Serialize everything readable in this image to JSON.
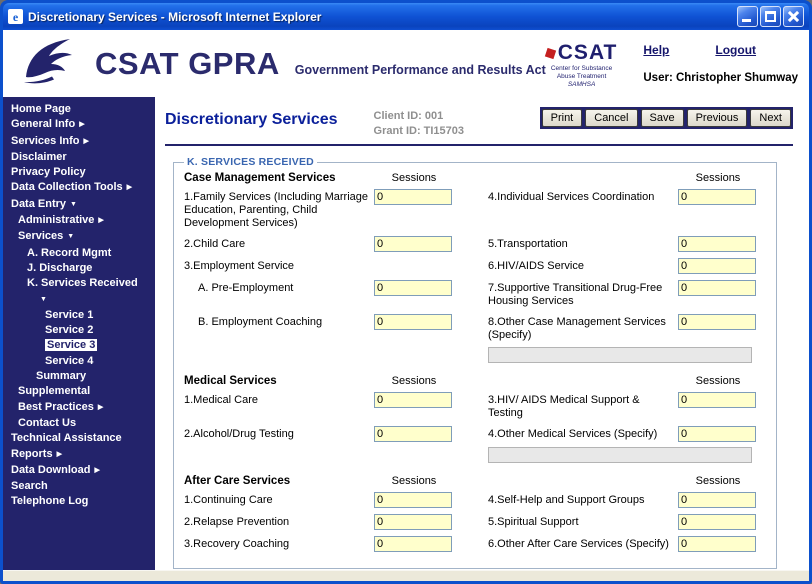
{
  "icons": {
    "chevron_right": "▶",
    "chevron_down": "▼",
    "ie_glyph": "e"
  },
  "window": {
    "title": "Discretionary Services - Microsoft Internet Explorer"
  },
  "header": {
    "brand": "CSAT GPRA",
    "tagline": "Government Performance and Results Act",
    "csat": {
      "title": "CSAT",
      "line1": "Center for Substance",
      "line2": "Abuse Treatment",
      "org": "SAMHSA"
    },
    "links": {
      "help": "Help",
      "logout": "Logout"
    },
    "user": "User: Christopher Shumway"
  },
  "sidebar": {
    "items": [
      {
        "label": "Home Page",
        "indent": 0
      },
      {
        "label": "General Info",
        "arrow": "right",
        "indent": 0
      },
      {
        "label": "Services Info",
        "arrow": "right",
        "indent": 0
      },
      {
        "label": "Disclaimer",
        "indent": 0
      },
      {
        "label": "Privacy Policy",
        "indent": 0
      },
      {
        "label": "Data Collection Tools",
        "arrow": "right",
        "indent": 0
      },
      {
        "label": "Data Entry",
        "arrow": "down",
        "indent": 0
      },
      {
        "label": "Administrative",
        "arrow": "right",
        "indent": 1
      },
      {
        "label": "Services",
        "arrow": "down",
        "indent": 1
      },
      {
        "label": "A. Record Mgmt",
        "indent": 2
      },
      {
        "label": "J. Discharge",
        "indent": 2
      },
      {
        "label": "K. Services Received",
        "arrow": "down",
        "arrow_newline": true,
        "indent": 2
      },
      {
        "label": "Service 1",
        "indent": 4
      },
      {
        "label": "Service 2",
        "indent": 4
      },
      {
        "label": "Service 3",
        "indent": 4,
        "selected": true
      },
      {
        "label": "Service 4",
        "indent": 4
      },
      {
        "label": "Summary",
        "indent": 3
      },
      {
        "label": "Supplemental",
        "indent": 1
      },
      {
        "label": "Best Practices",
        "arrow": "right",
        "indent": 1
      },
      {
        "label": "Contact Us",
        "indent": 1
      },
      {
        "label": "Technical Assistance",
        "indent": 0
      },
      {
        "label": "Reports",
        "arrow": "right",
        "indent": 0
      },
      {
        "label": "Data Download",
        "arrow": "right",
        "indent": 0
      },
      {
        "label": "Search",
        "indent": 0
      },
      {
        "label": "Telephone Log",
        "indent": 0
      }
    ]
  },
  "content": {
    "page_title": "Discretionary Services",
    "client_line": "Client ID: 001",
    "grant_line": "Grant ID: TI15703",
    "buttons": [
      "Print",
      "Cancel",
      "Save",
      "Previous",
      "Next"
    ],
    "fieldset_legend": "K. SERVICES RECEIVED",
    "sessions_header": "Sessions",
    "sections": [
      {
        "title": "Case Management Services",
        "rows": [
          {
            "left": {
              "label": "1.Family Services (Including Marriage Education, Parenting, Child Development Services)",
              "value": "0"
            },
            "right": {
              "label": "4.Individual Services Coordination",
              "value": "0"
            }
          },
          {
            "left": {
              "label": "2.Child Care",
              "value": "0"
            },
            "right": {
              "label": "5.Transportation",
              "value": "0"
            }
          },
          {
            "left": {
              "label": "3.Employment Service",
              "value": null
            },
            "right": {
              "label": "6.HIV/AIDS Service",
              "value": "0"
            }
          },
          {
            "left": {
              "label": "A. Pre-Employment",
              "value": "0",
              "indent": true
            },
            "right": {
              "label": "7.Supportive Transitional Drug-Free Housing Services",
              "value": "0"
            }
          },
          {
            "left": {
              "label": "B. Employment Coaching",
              "value": "0",
              "indent": true
            },
            "right": {
              "label": "8.Other Case Management Services (Specify)",
              "value": "0"
            }
          }
        ],
        "specify": {
          "value": ""
        }
      },
      {
        "title": "Medical Services",
        "rows": [
          {
            "left": {
              "label": "1.Medical Care",
              "value": "0"
            },
            "right": {
              "label": "3.HIV/ AIDS Medical Support & Testing",
              "value": "0"
            }
          },
          {
            "left": {
              "label": "2.Alcohol/Drug Testing",
              "value": "0"
            },
            "right": {
              "label": "4.Other Medical Services (Specify)",
              "value": "0"
            }
          }
        ],
        "specify": {
          "value": ""
        }
      },
      {
        "title": "After Care Services",
        "rows": [
          {
            "left": {
              "label": "1.Continuing Care",
              "value": "0"
            },
            "right": {
              "label": "4.Self-Help and Support Groups",
              "value": "0"
            }
          },
          {
            "left": {
              "label": "2.Relapse Prevention",
              "value": "0"
            },
            "right": {
              "label": "5.Spiritual Support",
              "value": "0"
            }
          },
          {
            "left": {
              "label": "3.Recovery Coaching",
              "value": "0"
            },
            "right": {
              "label": "6.Other After Care Services (Specify)",
              "value": "0"
            }
          }
        ],
        "specify": null
      }
    ]
  }
}
